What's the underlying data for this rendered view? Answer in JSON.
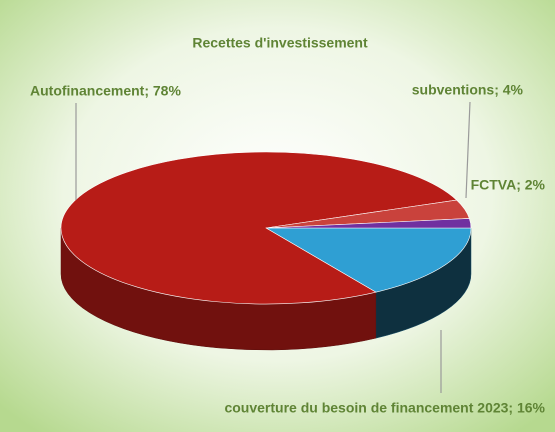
{
  "chart_data": {
    "type": "pie",
    "title": "Recettes d'investissement",
    "values": [
      16,
      78,
      4,
      2
    ],
    "value_labels": [
      "couverture du besoin de financement 2023; 16%",
      "Autofinancement; 78%",
      "subventions; 4%",
      "FCTVA; 2%"
    ],
    "colors": [
      "#2f9fd3",
      "#b71c17",
      "#c9423c",
      "#7030a0"
    ]
  }
}
